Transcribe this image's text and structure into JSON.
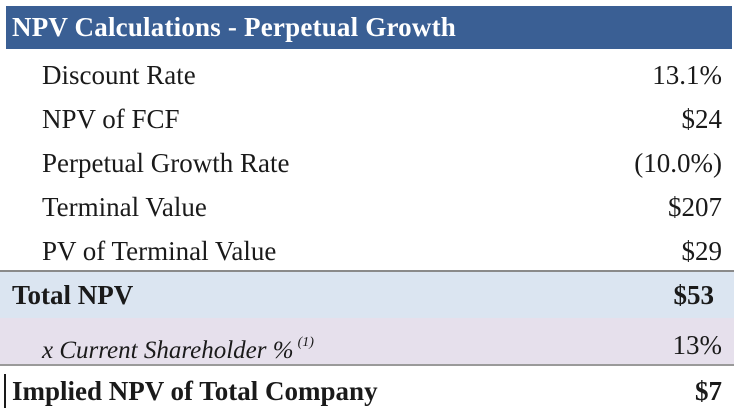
{
  "title": "NPV Calculations - Perpetual Growth",
  "rows": [
    {
      "label": "Discount Rate",
      "value": "13.1%"
    },
    {
      "label": "NPV of FCF",
      "value": "$24"
    },
    {
      "label": "Perpetual Growth Rate",
      "value": "(10.0%)"
    },
    {
      "label": "Terminal Value",
      "value": "$207"
    },
    {
      "label": "PV of Terminal Value",
      "value": "$29"
    }
  ],
  "total": {
    "label": "Total NPV",
    "value": "$53"
  },
  "shareholder": {
    "label": "x Current Shareholder %",
    "footnote": "(1)",
    "value": "13%"
  },
  "implied": {
    "label": "Implied NPV of Total Company",
    "value": "$7"
  },
  "colors": {
    "header_bg": "#3a5f94",
    "total_bg": "#dbe5f1",
    "shareholder_bg": "#e6e0ec"
  }
}
